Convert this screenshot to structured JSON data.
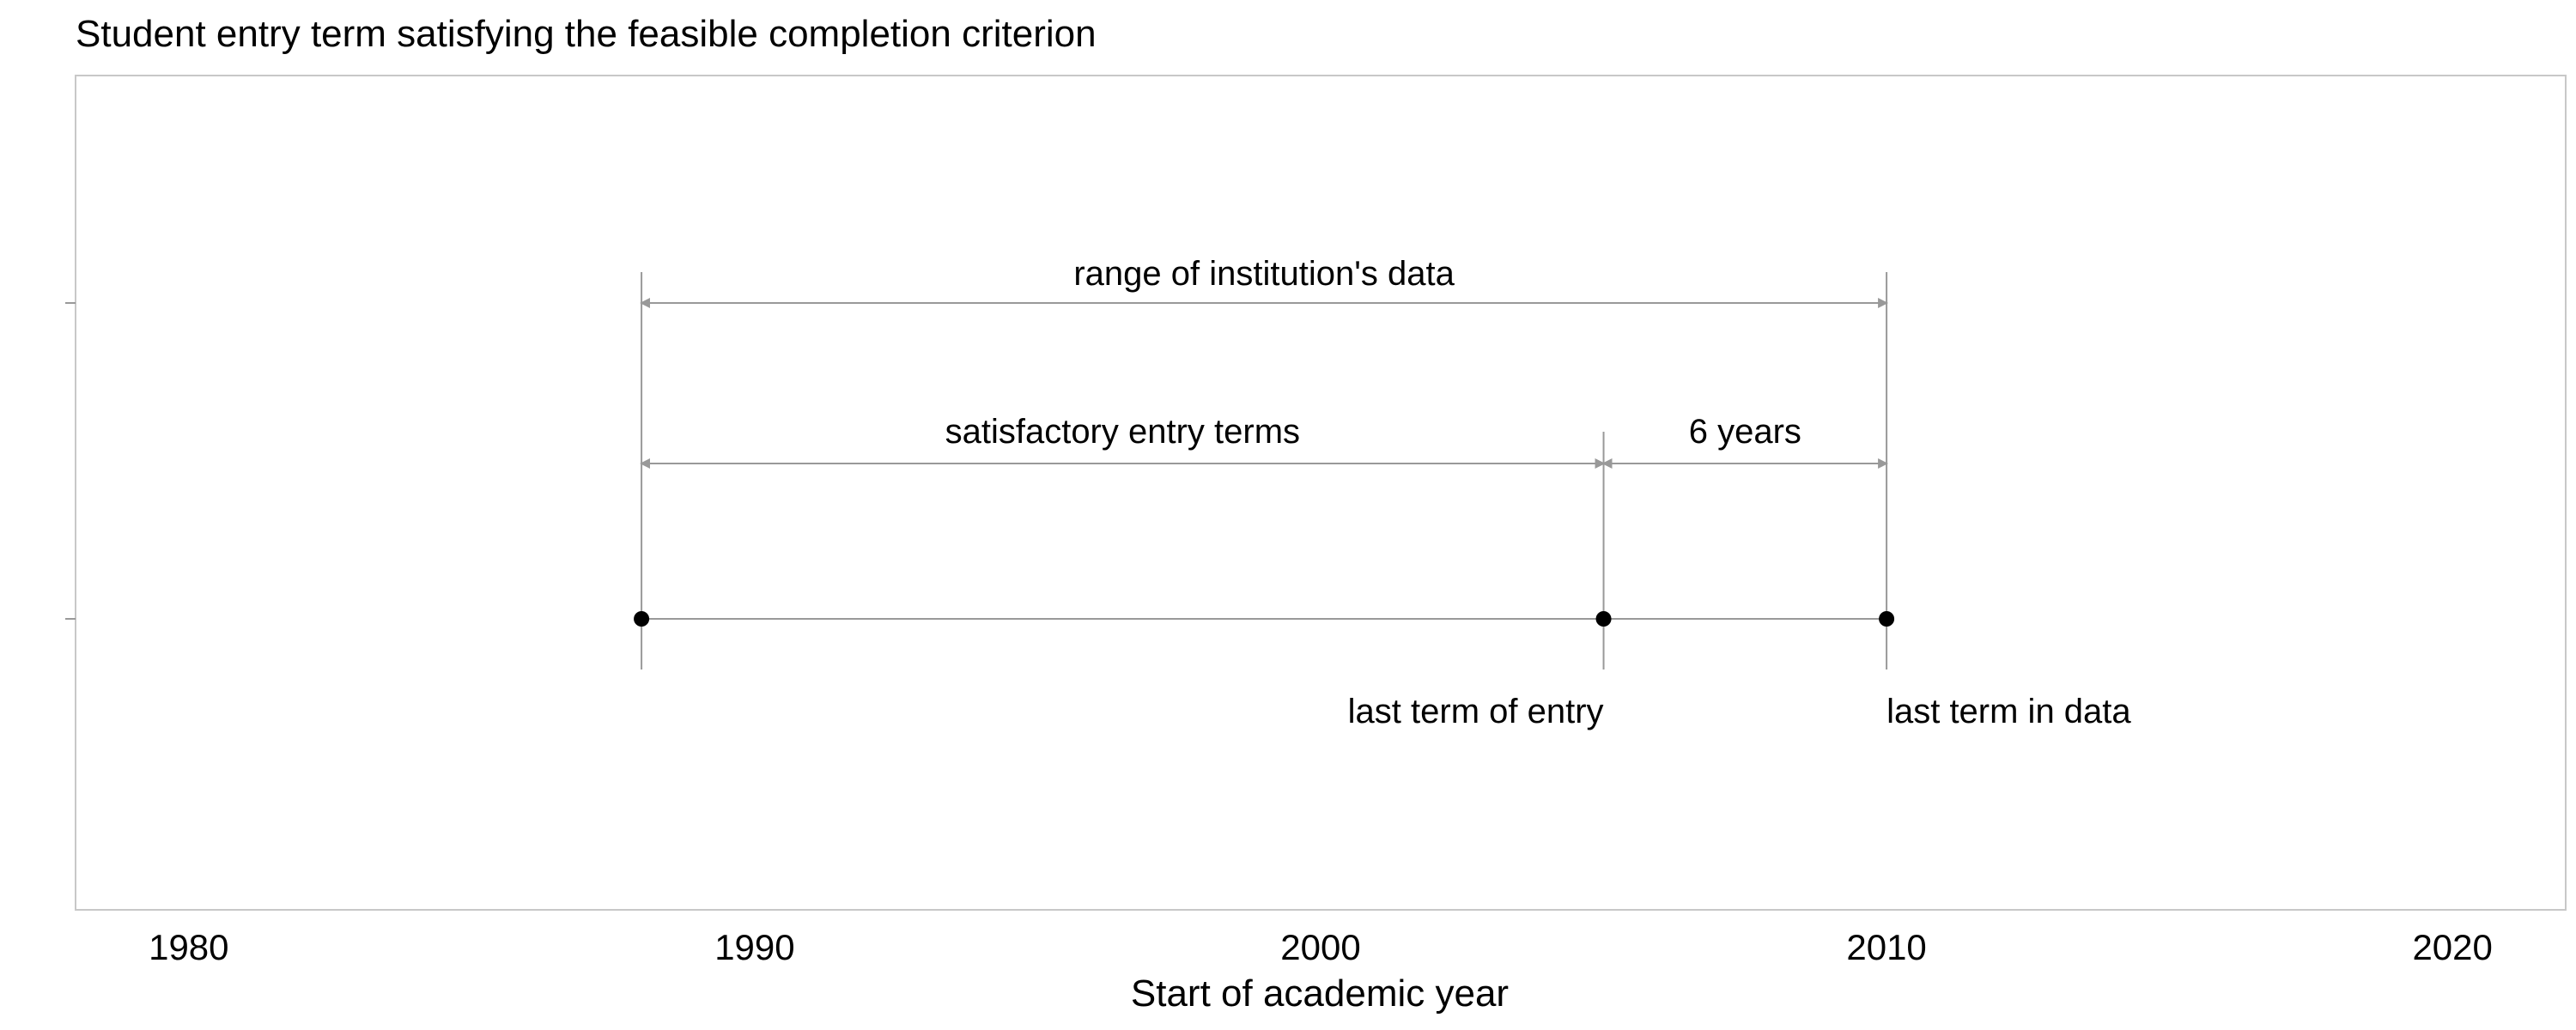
{
  "chart_data": {
    "type": "timeline",
    "title": "Student entry term satisfying the feasible completion criterion",
    "xlabel": "Start of academic year",
    "xlim": [
      1978,
      2022
    ],
    "xticks": [
      1980,
      1990,
      2000,
      2010,
      2020
    ],
    "grid": false,
    "colors": {
      "guide": "#999999",
      "marker": "#000000",
      "frame": "#c8c8c8"
    },
    "points": [
      {
        "year": 1988,
        "label": ""
      },
      {
        "year": 2005,
        "label": "last term of entry"
      },
      {
        "year": 2010,
        "label": "last term in data"
      }
    ],
    "spans": [
      {
        "label": "range of institution's data",
        "start": 1988,
        "end": 2010
      },
      {
        "label": "satisfactory entry terms",
        "start": 1988,
        "end": 2005
      },
      {
        "label": "6 years",
        "start": 2005,
        "end": 2010
      }
    ]
  }
}
